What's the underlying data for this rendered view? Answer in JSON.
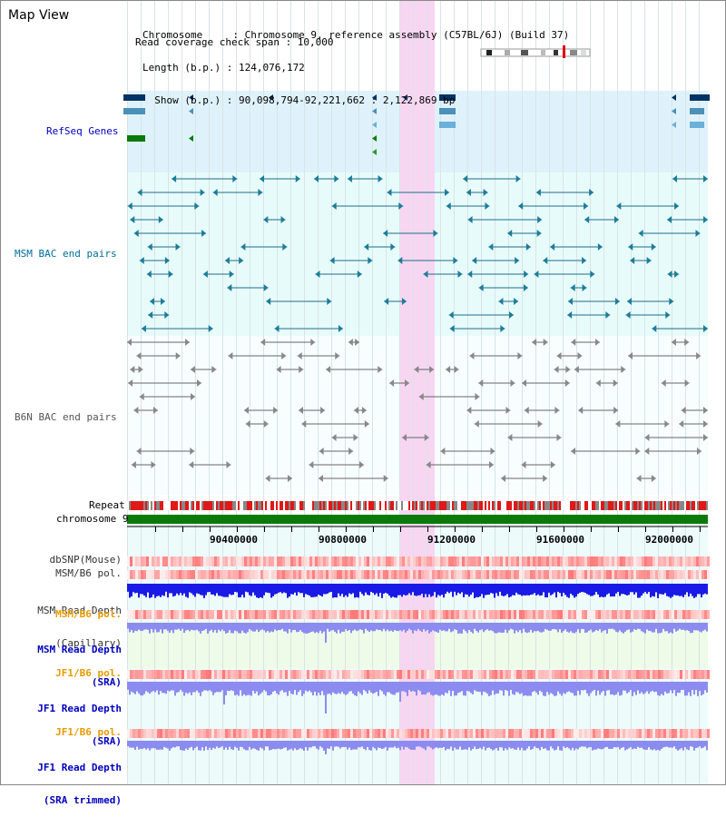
{
  "header": {
    "title": "Map View",
    "chromosome_line": "Chromosome     : Chromosome 9, reference assembly (C57BL/6J) (Build 37)",
    "length_line": "Length (b.p.) : 124,076,172",
    "show_line": "  Show (b.p.) : 90,098,794-92,221,662 : 2,122,869 bp",
    "coverage_line": "Read coverage check span : 10,000"
  },
  "tracks": {
    "refseq": "RefSeq Genes",
    "msm_bac": "MSM BAC end pairs",
    "b6n_bac": "B6N BAC end pairs",
    "repeat": "Repeat",
    "chromosome": "chromosome 9",
    "dbsnp": "dbSNP(Mouse)",
    "msm_b6_pol": "MSM/B6 pol.",
    "msm_depth_cap_1": "MSM Read Depth",
    "msm_depth_cap_2": "(Capillary)",
    "msm_b6_pol_2": "MSM/B6 pol.",
    "msm_depth_sra_1": "MSM Read Depth",
    "msm_depth_sra_2": "(SRA)",
    "jf1_b6_pol": "JF1/B6 pol.",
    "jf1_depth_sra_1": "JF1 Read Depth",
    "jf1_depth_sra_2": "(SRA)",
    "jf1_b6_pol_2": "JF1/B6 pol.",
    "jf1_depth_trim_1": "JF1 Read Depth",
    "jf1_depth_trim_2": "(SRA trimmed)"
  },
  "axis": {
    "ticks": [
      "90400000",
      "90800000",
      "91200000",
      "91600000",
      "92000000"
    ]
  },
  "colors": {
    "refseq_bg": "#dff2fb",
    "bac_bg": "#e8fbfb",
    "highlight": "#f7d6f2",
    "chromosome_bar": "#0a7a0a",
    "depth_capillary": "#1a1ae6",
    "depth_sra": "#8c8cf0",
    "pol_red": "#ff4040",
    "label_blue": "#0000c0",
    "label_teal": "#006e9a",
    "label_orange": "#e69a00"
  }
}
